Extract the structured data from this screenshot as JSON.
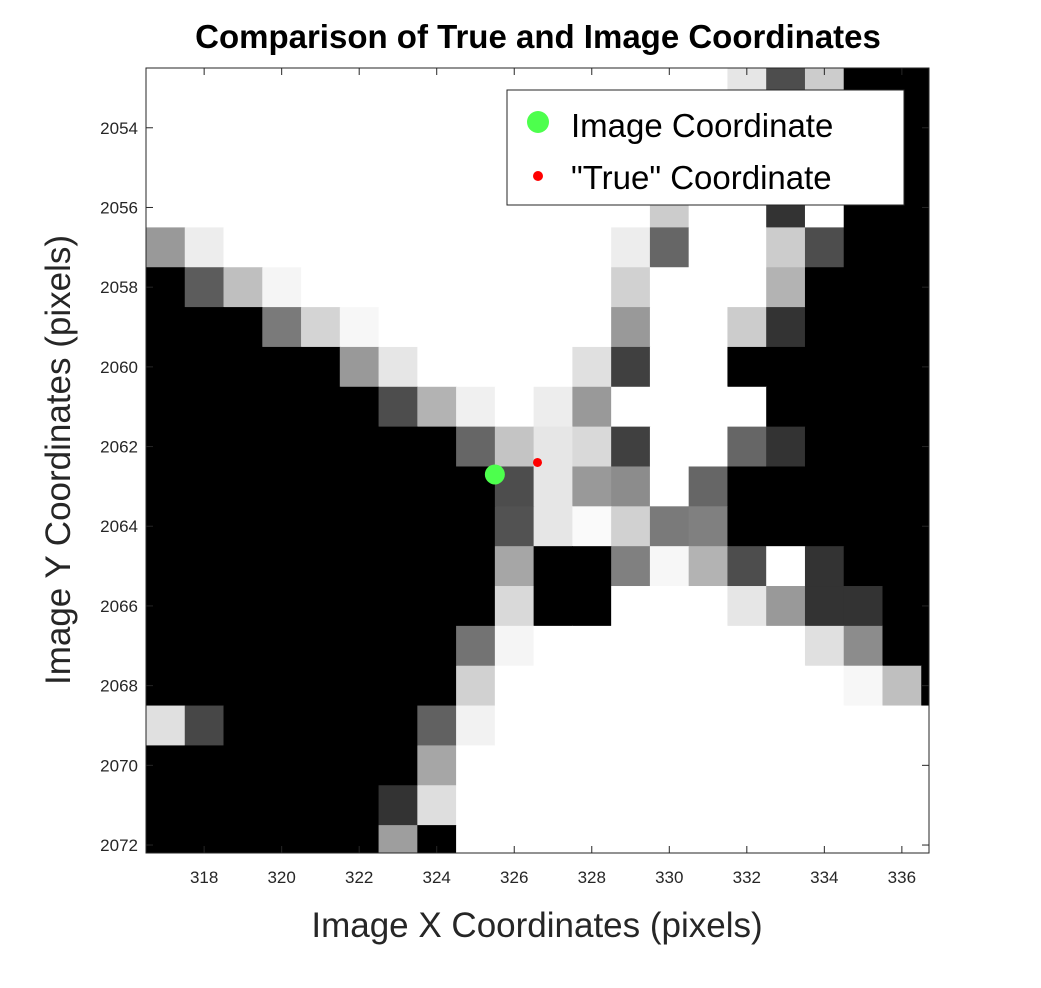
{
  "chart_data": {
    "type": "heatmap",
    "title": "Comparison of True and Image Coordinates",
    "xlabel": "Image X Coordinates (pixels)",
    "ylabel": "Image Y Coordinates (pixels)",
    "xlim": [
      316.5,
      336.7
    ],
    "ylim": [
      2052.5,
      2072.2
    ],
    "y_reversed": true,
    "colormap": "gray",
    "xticks": [
      318,
      320,
      322,
      324,
      326,
      328,
      330,
      332,
      334,
      336
    ],
    "yticks": [
      2054,
      2056,
      2058,
      2060,
      2062,
      2064,
      2066,
      2068,
      2070,
      2072
    ],
    "image": {
      "x0": 317,
      "y0": 2053,
      "value_scale": "0 = black, 1 = white",
      "rows": [
        "1111111111111111980000",
        "1111111111111111100000",
        "1111111111111111100000",
        "1111111111111111210000",
        "5811111111111111830000",
        "0361111111111111700000",
        "0004911111111118200000",
        "0000002111111110000000",
        "0000008211111111000000",
        "0000000057111114200000",
        "0000000003911140000000",
        "0000000000059150000000",
        "0000000000005191120000",
        "0000000000001111112000",
        "0000000000111111114000",
        "0000000001111111111000",
        "0000000011111111111110",
        "0000000011111111111111",
        "0000000011111111111111",
        "0000000011111111111111",
        "0000000011111111111111"
      ],
      "overrides": [
        [
          16,
          0,
          0.88
        ],
        [
          16,
          1,
          0.28
        ],
        [
          4,
          0,
          0.6
        ],
        [
          4,
          1,
          0.93
        ],
        [
          5,
          1,
          0.36
        ],
        [
          5,
          2,
          0.75
        ],
        [
          5,
          3,
          0.96
        ],
        [
          6,
          3,
          0.48
        ],
        [
          6,
          4,
          0.83
        ],
        [
          6,
          5,
          0.97
        ],
        [
          7,
          5,
          0.6
        ],
        [
          7,
          6,
          0.9
        ],
        [
          8,
          6,
          0.3
        ],
        [
          8,
          7,
          0.7
        ],
        [
          8,
          8,
          0.94
        ],
        [
          9,
          8,
          0.4
        ],
        [
          9,
          9,
          0.77
        ],
        [
          9,
          10,
          0.9
        ],
        [
          9,
          11,
          0.85
        ],
        [
          9,
          12,
          0.25
        ],
        [
          10,
          11,
          0.6
        ],
        [
          10,
          12,
          0.55
        ],
        [
          11,
          9,
          0.32
        ],
        [
          11,
          10,
          0.9
        ],
        [
          11,
          11,
          0.98
        ],
        [
          11,
          12,
          0.82
        ],
        [
          11,
          13,
          0.48
        ],
        [
          12,
          9,
          0.65
        ],
        [
          12,
          13,
          0.97
        ],
        [
          12,
          14,
          0.7
        ],
        [
          12,
          15,
          0.3
        ],
        [
          13,
          9,
          0.85
        ],
        [
          13,
          15,
          0.9
        ],
        [
          13,
          16,
          0.6
        ],
        [
          13,
          17,
          0.2
        ],
        [
          14,
          8,
          0.45
        ],
        [
          14,
          9,
          0.96
        ],
        [
          14,
          17,
          0.88
        ],
        [
          14,
          18,
          0.55
        ],
        [
          15,
          8,
          0.82
        ],
        [
          15,
          18,
          0.97
        ],
        [
          15,
          19,
          0.75
        ],
        [
          16,
          7,
          0.38
        ],
        [
          16,
          8,
          0.95
        ],
        [
          17,
          7,
          0.65
        ],
        [
          18,
          6,
          0.2
        ],
        [
          18,
          7,
          0.87
        ],
        [
          19,
          6,
          0.62
        ],
        [
          0,
          15,
          0.9
        ],
        [
          0,
          16,
          0.3
        ],
        [
          3,
          13,
          0.8
        ],
        [
          4,
          12,
          0.93
        ],
        [
          4,
          13,
          0.4
        ],
        [
          5,
          12,
          0.82
        ],
        [
          6,
          12,
          0.6
        ],
        [
          7,
          11,
          0.88
        ],
        [
          7,
          12,
          0.25
        ],
        [
          8,
          10,
          0.93
        ],
        [
          8,
          11,
          0.6
        ]
      ]
    },
    "series": [
      {
        "name": "Image Coordinate",
        "color": "#4dff4d",
        "marker": "circle-large",
        "x": 325.5,
        "y": 2062.7
      },
      {
        "name": "\"True\" Coordinate",
        "color": "#ff0000",
        "marker": "circle-small",
        "x": 326.6,
        "y": 2062.4
      }
    ],
    "legend": {
      "placement": "top-right"
    },
    "grid": false
  }
}
